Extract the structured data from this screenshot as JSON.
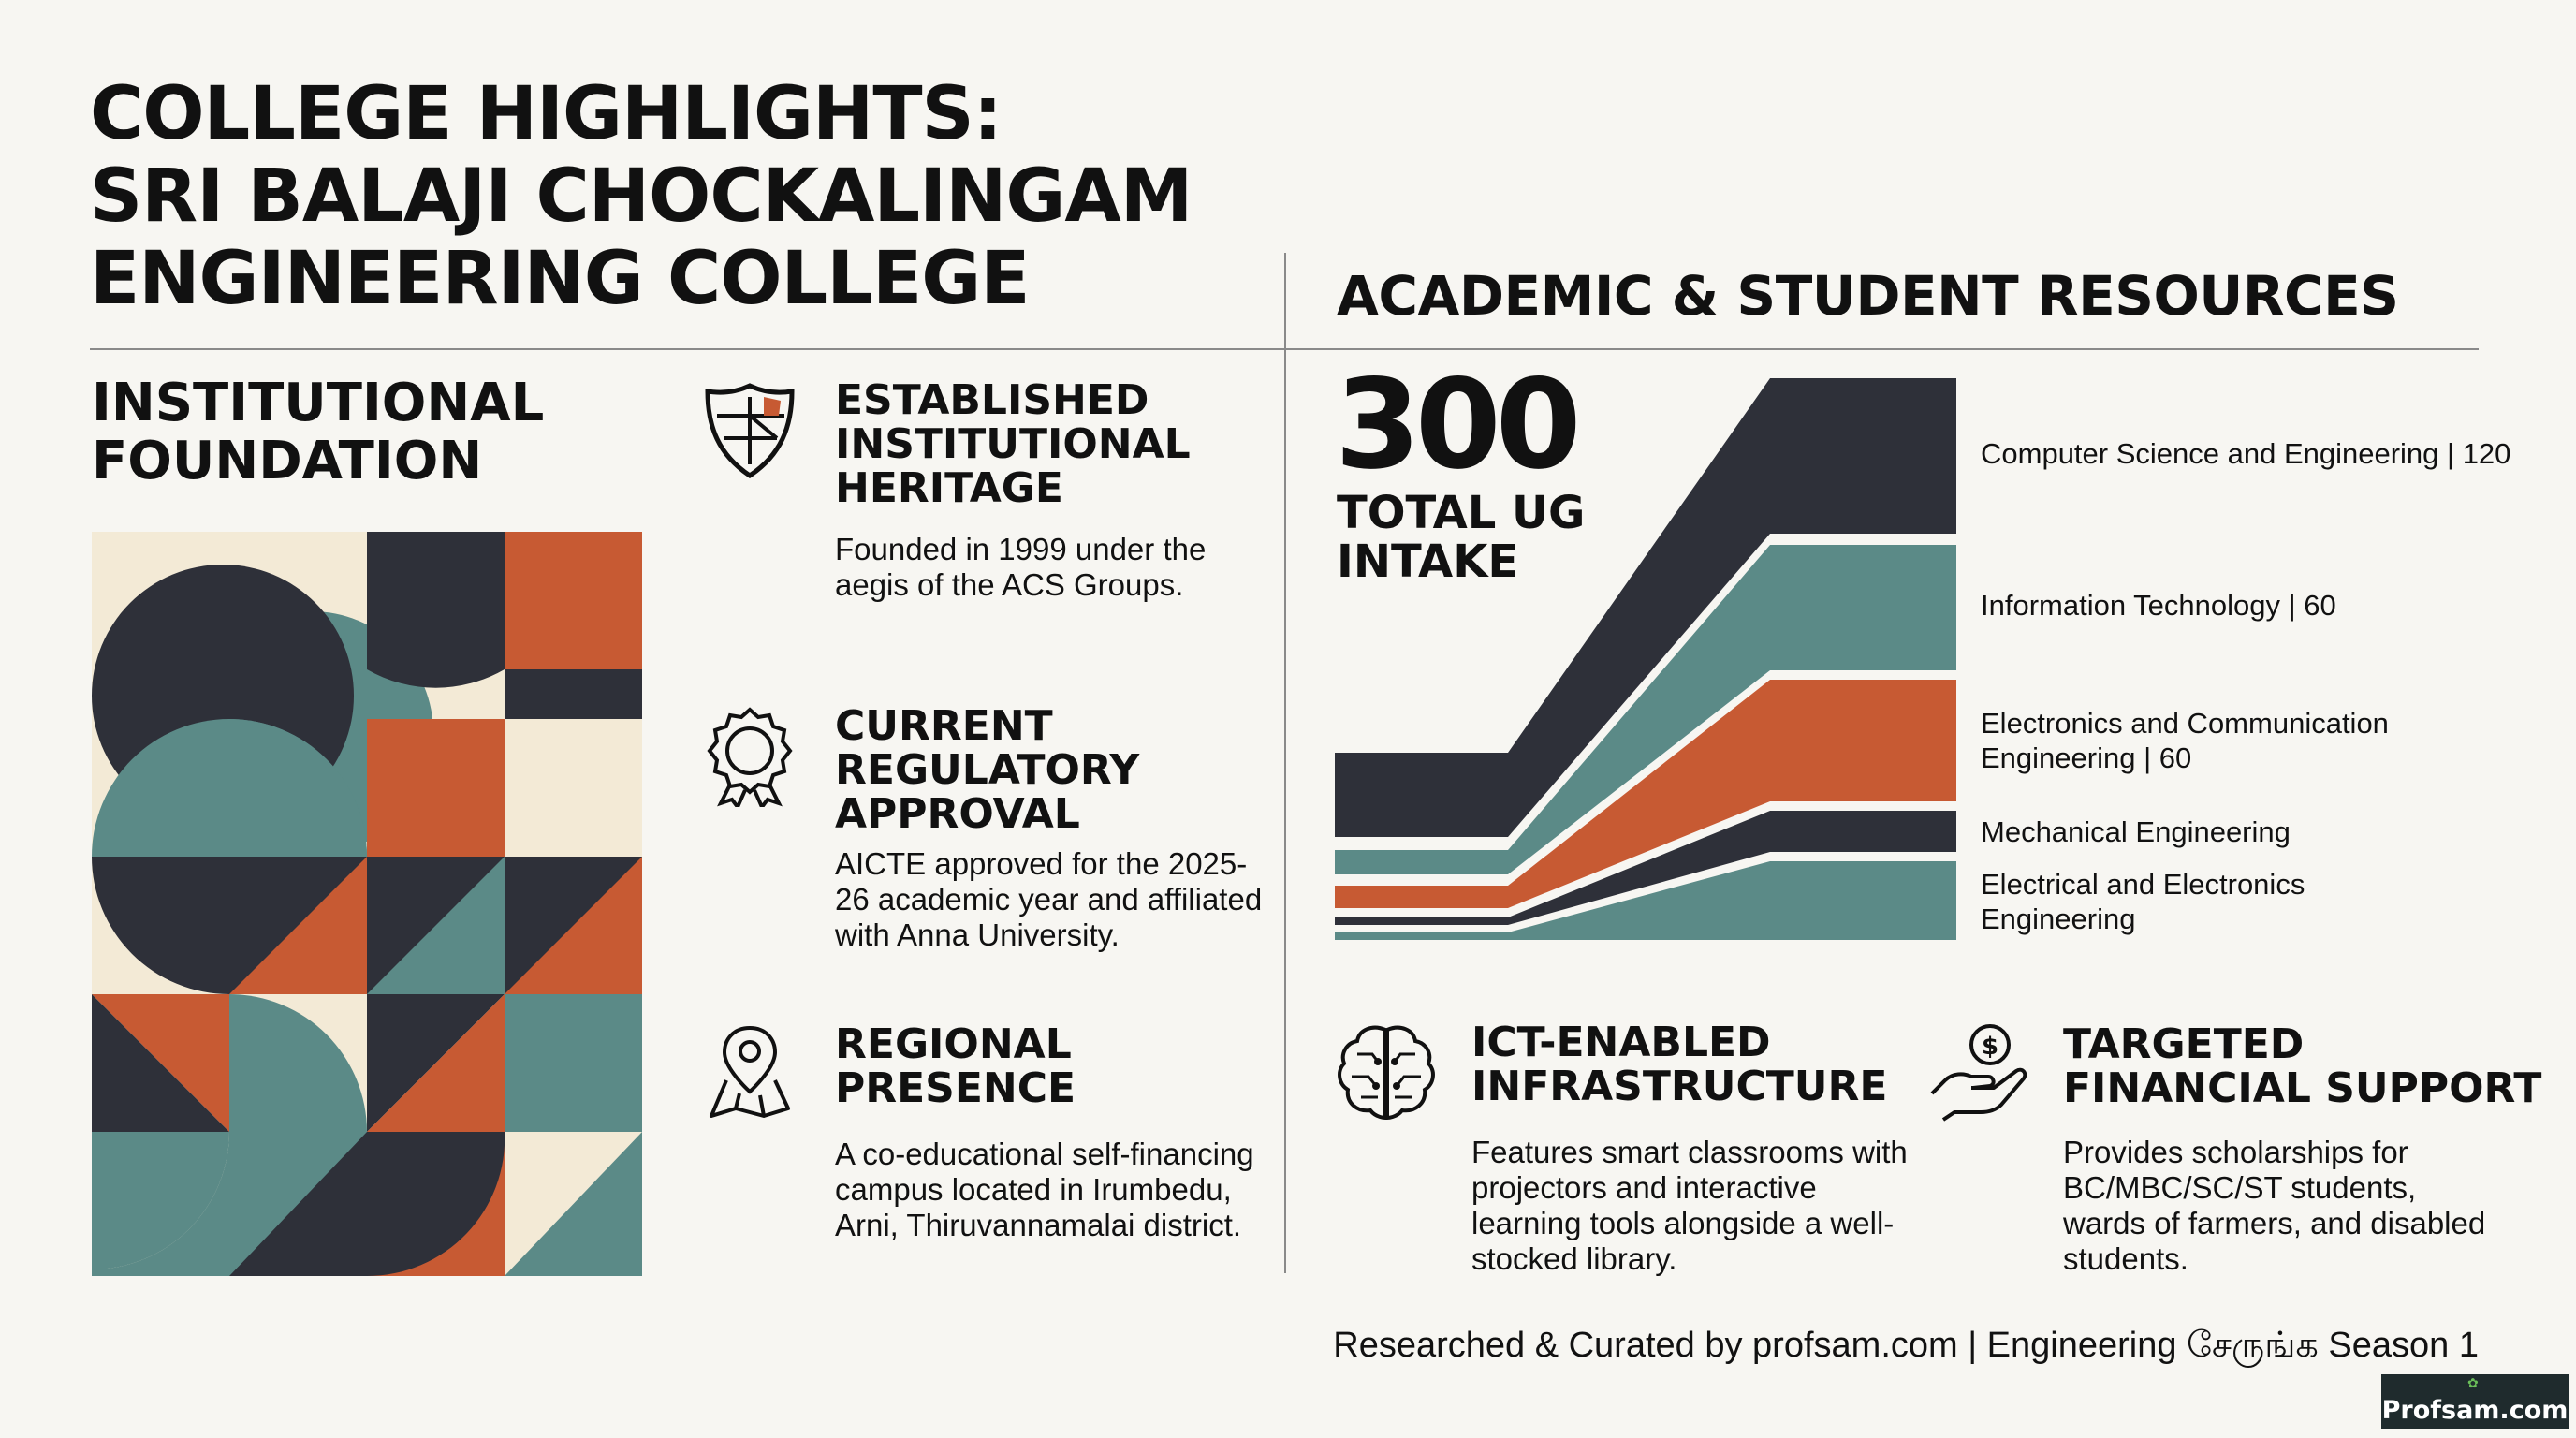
{
  "title": {
    "line1": "COLLEGE HIGHLIGHTS:",
    "line2": "SRI BALAJI CHOCKALINGAM",
    "line3": "ENGINEERING COLLEGE"
  },
  "sections": {
    "academic": "ACADEMIC & STUDENT RESOURCES",
    "institutional": "INSTITUTIONAL FOUNDATION"
  },
  "features": [
    {
      "icon": "shield-icon",
      "title": "ESTABLISHED INSTITUTIONAL HERITAGE",
      "text": "Founded in 1999 under the aegis of the ACS Groups."
    },
    {
      "icon": "award-ribbon-icon",
      "title": "CURRENT REGULATORY APPROVAL",
      "text": "AICTE approved for the 2025-26 academic year and affiliated with Anna University."
    },
    {
      "icon": "map-pin-icon",
      "title": "REGIONAL PRESENCE",
      "text": "A co-educational self-financing campus located in Irumbedu, Arni, Thiruvannamalai district."
    },
    {
      "icon": "brain-circuit-icon",
      "title": "ICT-ENABLED INFRASTRUCTURE",
      "text": "Features smart classrooms with projectors and interactive learning tools alongside a well-stocked library."
    },
    {
      "icon": "hand-money-icon",
      "title": "TARGETED FINANCIAL SUPPORT",
      "text": "Provides scholarships for BC/MBC/SC/ST students, wards of farmers, and disabled students."
    }
  ],
  "intake": {
    "total": "300",
    "label": "TOTAL UG INTAKE",
    "branches": [
      {
        "label": "Computer Science and Engineering | 120",
        "color": "#2e3039"
      },
      {
        "label": "Information Technology | 60",
        "color": "#5b8a87"
      },
      {
        "label": "Electronics and Communication Engineering | 60",
        "color": "#c75a33"
      },
      {
        "label": "Mechanical Engineering",
        "color": "#2e3039"
      },
      {
        "label": "Electrical and Electronics Engineering",
        "color": "#5b8a87"
      }
    ]
  },
  "footer": {
    "credit": "Researched & Curated by profsam.com | Engineering சேருங்க Season 1",
    "badge": "Profsam.com"
  },
  "palette": {
    "dark": "#2e3039",
    "teal": "#5b8a87",
    "orange": "#c75a33",
    "cream": "#f3ead6"
  }
}
